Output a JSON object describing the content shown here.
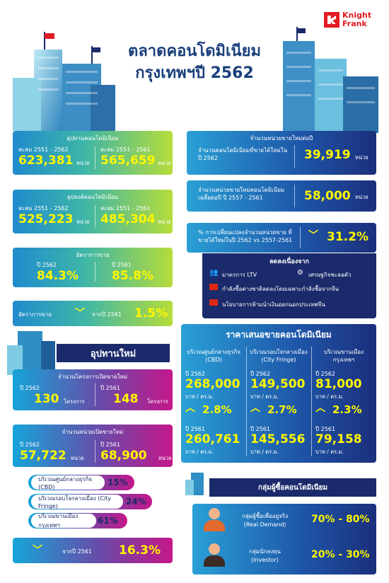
{
  "brand": {
    "name_line1": "Knight",
    "name_line2": "Frank"
  },
  "title": {
    "line1": "ตลาดคอนโดมิเนียม",
    "line2": "กรุงเทพฯปี 2562"
  },
  "supply": {
    "header": "อุปทานคอนโดมิเนียม",
    "left_label": "สะสม 2551 - 2562",
    "left_value": "623,381",
    "left_unit": "หน่วย",
    "right_label": "สะสม 2551 - 2561",
    "right_value": "565,659",
    "right_unit": "หน่วย"
  },
  "demand": {
    "header": "อุปสงค์คอนโดมิเนียม",
    "left_label": "สะสม 2551 - 2562",
    "left_value": "525,223",
    "left_unit": "หน่วย",
    "right_label": "สะสม 2551 - 2561",
    "right_value": "485,304",
    "right_unit": "หน่วย"
  },
  "sales_rate": {
    "header": "อัตราการขาย",
    "left_label": "ปี 2562",
    "left_value": "84.3%",
    "right_label": "ปี 2561",
    "right_value": "85.8%"
  },
  "sales_change": {
    "label": "อัตราการขาย",
    "from": "จากปี 2561",
    "value": "1.5%"
  },
  "resale": {
    "header": "จำนวนหน่วยขายใหม่ต่อปี",
    "row1_label": "จำนวนคอนโดมิเนียมที่ขายได้ใหม่ในปี 2562",
    "row1_value": "39,919",
    "row1_unit": "หน่วย",
    "row2_label": "จำนวนหน่วยขายใหม่คอนโดมิเนียม เฉลี่ยต่อปี ปี 2557 - 2561",
    "row2_value": "58,000",
    "row2_unit": "หน่วย",
    "row3_label": "% การเปลี่ยนแปลงจำนวนหน่วยขาย ที่ขายได้ใหม่ในปี 2562 vs 2557-2561",
    "row3_value": "31.2%"
  },
  "reasons": {
    "header": "ลดลงเนื่องจาก",
    "r1": "มาตรการ LTV",
    "r2": "เศรษฐกิจชะลอตัว",
    "r3": "กำลังซื้อต่างชาติลดลงโดยเฉพาะกำลังซื้อจากจีน",
    "r4": "นโยบายการห้ามนำเงินออกนอกประเทศจีน"
  },
  "new_supply": {
    "header": "อุปทานใหม่",
    "projects_header": "จำนวนโครงการเปิดขายใหม่",
    "p_left_label": "ปี 2562",
    "p_left_value": "130",
    "p_left_unit": "โครงการ",
    "p_right_label": "ปี 2561",
    "p_right_value": "148",
    "p_right_unit": "โครงการ",
    "units_header": "จำนวนหน่วยเปิดขายใหม่",
    "u_left_label": "ปี 2562",
    "u_left_value": "57,722",
    "u_left_unit": "หน่วย",
    "u_right_label": "ปี 2561",
    "u_right_value": "68,900",
    "u_right_unit": "หน่วย",
    "zones": [
      {
        "label": "บริเวณศูนย์กลางธุรกิจ (CBD)",
        "value": "15%"
      },
      {
        "label": "บริเวณรอบใจกลางเมือง (City Fringe)",
        "value": "24%"
      },
      {
        "label": "บริเวณขานเมืองกรุงเทพฯ",
        "value": "61%"
      }
    ],
    "change_from": "จากปี 2561",
    "change_value": "16.3%"
  },
  "prices": {
    "header": "ราคาเสนอขายคอนโดมิเนียม",
    "unit": "บาท / ตร.ม.",
    "cols": [
      {
        "h1": "บริเวณศูนย์กลางธุรกิจ",
        "h2": "(CBD)",
        "y1": "ปี 2562",
        "v1": "268,000",
        "chg": "2.8%",
        "y2": "ปี 2561",
        "v2": "260,761"
      },
      {
        "h1": "บริเวณรอบใจกลางเมือง",
        "h2": "(City Fringe)",
        "y1": "ปี 2562",
        "v1": "149,500",
        "chg": "2.7%",
        "y2": "ปี 2561",
        "v2": "145,556"
      },
      {
        "h1": "บริเวณขานเมือง",
        "h2": "กรุงเทพฯ",
        "y1": "ปี 2562",
        "v1": "81,000",
        "chg": "2.3%",
        "y2": "ปี 2561",
        "v2": "79,158"
      }
    ]
  },
  "buyers": {
    "header": "กลุ่มผู้ซื้อคอนโดมิเนียม",
    "b1_label": "กลุ่มผู้ซื้อเพื่ออยู่จริง",
    "b1_sub": "(Real Demand)",
    "b1_value": "70% - 80%",
    "b2_label": "กลุ่มนักลงทุน",
    "b2_sub": "(Investor)",
    "b2_value": "20% - 30%"
  },
  "colors": {
    "accent": "#fff700",
    "navy": "#1b2a6a",
    "brand": "#e31b23"
  }
}
